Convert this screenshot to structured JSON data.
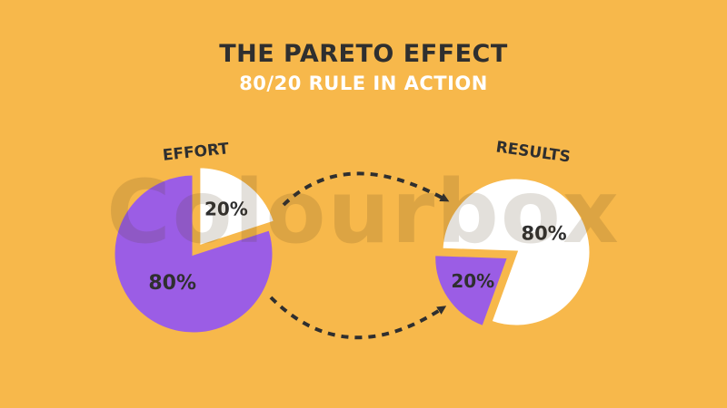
{
  "header": {
    "title": "THE PARETO EFFECT",
    "subtitle": "80/20 RULE IN ACTION"
  },
  "watermark": "Colourbox",
  "colors": {
    "background": "#f7b84b",
    "purple": "#9b5de5",
    "white": "#ffffff",
    "text_dark": "#2f2f2f",
    "arrow": "#2f2f2f"
  },
  "chart_data": [
    {
      "type": "pie",
      "title": "EFFORT",
      "slices": [
        {
          "label": "80%",
          "value": 80,
          "color": "#9b5de5",
          "exploded": false
        },
        {
          "label": "20%",
          "value": 20,
          "color": "#ffffff",
          "exploded": true
        }
      ]
    },
    {
      "type": "pie",
      "title": "RESULTS",
      "slices": [
        {
          "label": "80%",
          "value": 80,
          "color": "#ffffff",
          "exploded": false
        },
        {
          "label": "20%",
          "value": 20,
          "color": "#9b5de5",
          "exploded": true
        }
      ]
    }
  ]
}
